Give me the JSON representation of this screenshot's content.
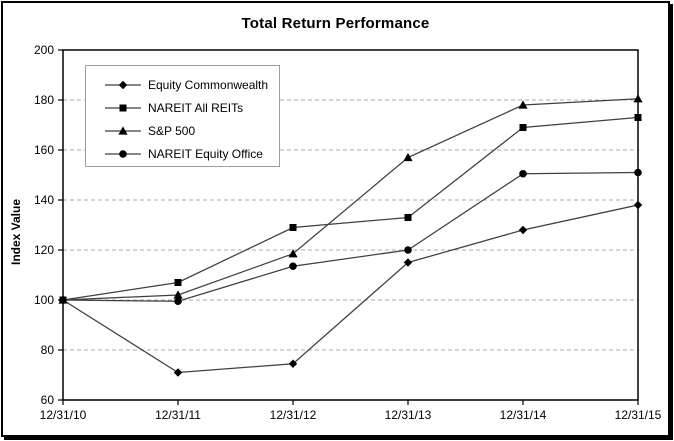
{
  "chart_data": {
    "type": "line",
    "title": "Total Return Performance",
    "ylabel": "Index Value",
    "xlabel": "",
    "x_labels": [
      "12/31/10",
      "12/31/11",
      "12/31/12",
      "12/31/13",
      "12/31/14",
      "12/31/15"
    ],
    "ylim": [
      60,
      200
    ],
    "yticks": [
      60,
      80,
      100,
      120,
      140,
      160,
      180,
      200
    ],
    "grid": "horizontal-dashed",
    "legend_position": "upper-left-inside",
    "series": [
      {
        "name": "Equity Commonwealth",
        "marker": "diamond",
        "values": [
          100,
          71,
          74.5,
          115,
          128,
          138
        ]
      },
      {
        "name": "NAREIT All REITs",
        "marker": "square",
        "values": [
          100,
          107,
          129,
          133,
          169,
          173
        ]
      },
      {
        "name": "S&P 500",
        "marker": "triangle",
        "values": [
          100,
          102,
          118.5,
          157,
          178,
          180.5
        ]
      },
      {
        "name": "NAREIT Equity Office",
        "marker": "circle",
        "values": [
          100,
          99.5,
          113.5,
          120,
          150.5,
          151
        ]
      }
    ],
    "colors": {
      "line": "#3f3f3f",
      "marker": "#000000",
      "grid": "#ababab",
      "axis": "#000000",
      "background": "#ffffff",
      "legend_border": "#9c9c9c"
    }
  }
}
